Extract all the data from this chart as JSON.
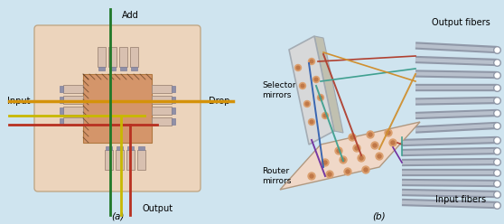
{
  "bg_color": "#cfe4ef",
  "fig_width": 5.58,
  "fig_height": 2.48,
  "label_a": "(a)",
  "label_b": "(b)",
  "text_input": "Input",
  "text_drop": "Drop",
  "text_add": "Add",
  "text_output": "Output",
  "text_selector": "Selector\nmirrors",
  "text_router": "Router\nmirrors",
  "text_output_fibers": "Output fibers",
  "text_input_fibers": "Input fibers",
  "color_orange": "#d4920a",
  "color_yellow": "#c8b800",
  "color_red": "#b83020",
  "color_green": "#207828",
  "color_peach": "#dba070",
  "color_outer_bg": "#ecd4bc",
  "color_center": "#d4956a",
  "color_connector_body": "#d8c0b0",
  "color_connector_end": "#a8a8c0",
  "color_connector_dark": "#9090a8",
  "color_gray_tube": "#9098a8",
  "color_gray_tube_light": "#b8c0cc",
  "color_blue": "#3060b0",
  "color_teal": "#40a090",
  "color_purple": "#7030a0",
  "color_brown_red": "#b04030",
  "color_orange_line": "#d09030",
  "color_mirror_face": "#e8ddd0",
  "color_mirror_edge": "#c0b8a8",
  "color_router_face": "#f0d8c8",
  "color_selector_face": "#d8d8d8",
  "color_selector_edge": "#a0a8b0"
}
